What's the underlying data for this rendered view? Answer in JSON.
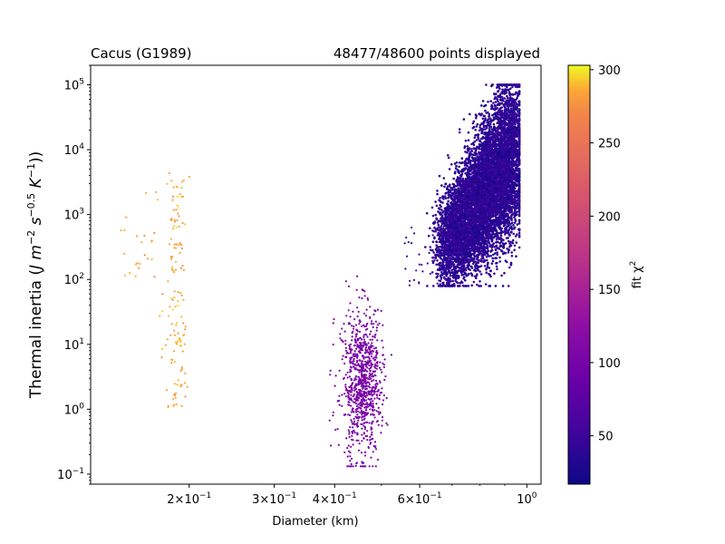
{
  "chart_data": {
    "type": "scatter",
    "title_left": "Cacus (G1989)",
    "title_right": "48477/48600 points displayed",
    "xlabel": "Diameter (km)",
    "ylabel_parts": {
      "base": "Thermal inertia (",
      "sym": "J m",
      "e1": "−2",
      "s": " s",
      "e2": "−0.5",
      "k": " K",
      "e3": "−1",
      "end": "))"
    },
    "xscale": "log",
    "yscale": "log",
    "xlim": [
      0.125,
      1.07
    ],
    "ylim": [
      0.07,
      200000
    ],
    "grid": false,
    "x_ticks": [
      {
        "value": 0.2,
        "mant": "2",
        "exp": "−1"
      },
      {
        "value": 0.3,
        "mant": "3",
        "exp": "−1"
      },
      {
        "value": 0.4,
        "mant": "4",
        "exp": "−1"
      },
      {
        "value": 0.6,
        "mant": "6",
        "exp": "−1"
      },
      {
        "value": 1.0,
        "mant": "1",
        "exp": "0",
        "plain": true
      }
    ],
    "y_ticks": [
      {
        "value": 0.1,
        "exp": "−1"
      },
      {
        "value": 1,
        "exp": "0"
      },
      {
        "value": 10,
        "exp": "1"
      },
      {
        "value": 100,
        "exp": "2"
      },
      {
        "value": 1000,
        "exp": "3"
      },
      {
        "value": 10000,
        "exp": "4"
      },
      {
        "value": 100000,
        "exp": "5"
      }
    ],
    "colorbar": {
      "label_base": "fit χ",
      "label_exp": "2",
      "colormap": "plasma",
      "range": [
        17,
        303
      ],
      "ticks": [
        50,
        100,
        150,
        200,
        250,
        300
      ]
    },
    "clusters": [
      {
        "name": "small-diameter-cluster",
        "x_range": [
          0.13,
          0.2
        ],
        "y_range": [
          0.9,
          4500
        ],
        "chi2": 285,
        "count": 160
      },
      {
        "name": "mid-diameter-cluster",
        "x_range": [
          0.38,
          0.52
        ],
        "y_range": [
          0.13,
          120
        ],
        "chi2": 105,
        "count": 900
      },
      {
        "name": "large-diameter-cluster",
        "x_range": [
          0.62,
          0.96
        ],
        "y_range": [
          80,
          100000
        ],
        "chi2": 40,
        "count": 8000
      }
    ]
  }
}
